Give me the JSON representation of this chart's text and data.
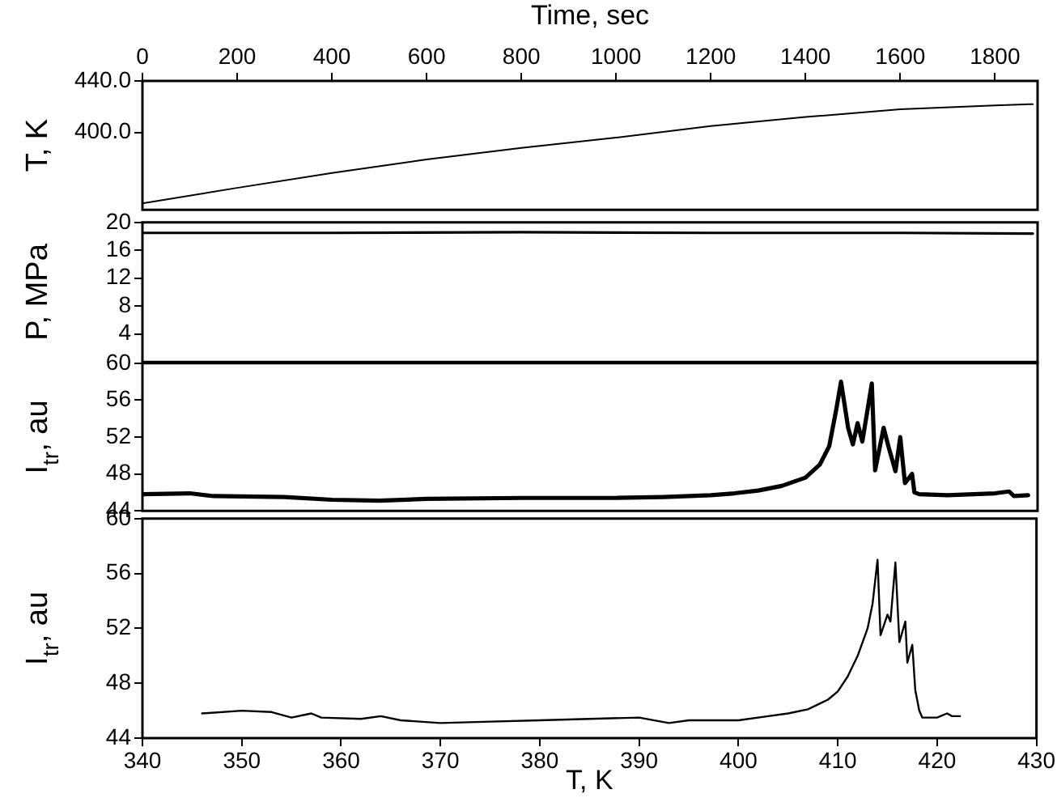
{
  "chart_data": [
    {
      "type": "line",
      "xlabel": "Time, sec",
      "ylabel": "T, K",
      "xlim": [
        0,
        1890
      ],
      "xticks": [
        0,
        200,
        400,
        600,
        800,
        1000,
        1200,
        1400,
        1600,
        1800
      ],
      "ylim": [
        340,
        440
      ],
      "yticks": [
        {
          "value": 400,
          "label": "400.0"
        },
        {
          "value": 440,
          "label": "440.0"
        }
      ],
      "series": [
        {
          "color": "#000000",
          "x": [
            0,
            200,
            400,
            600,
            800,
            1000,
            1200,
            1400,
            1600,
            1800,
            1880
          ],
          "values": [
            345,
            357,
            368.5,
            379,
            388,
            396,
            405,
            412,
            418,
            421,
            422
          ]
        }
      ]
    },
    {
      "type": "line",
      "ylabel": "P, MPa",
      "xlim": [
        0,
        1890
      ],
      "xticks": [
        0,
        200,
        400,
        600,
        800,
        1000,
        1200,
        1400,
        1600,
        1800
      ],
      "ylim": [
        0,
        20
      ],
      "yticks": [
        4,
        8,
        12,
        16,
        20
      ],
      "tick_labels": "y",
      "series": [
        {
          "color": "#000000",
          "x": [
            0,
            400,
            800,
            1200,
            1600,
            1880
          ],
          "values": [
            18.5,
            18.5,
            18.6,
            18.5,
            18.5,
            18.4
          ]
        }
      ]
    },
    {
      "type": "line",
      "ylabel": "I$_{tr}$, au",
      "xlim": [
        0,
        1890
      ],
      "xticks": [
        0,
        200,
        400,
        600,
        800,
        1000,
        1200,
        1400,
        1600,
        1800
      ],
      "ylim": [
        44,
        60
      ],
      "yticks": [
        44,
        48,
        52,
        56,
        60
      ],
      "tick_labels": "y",
      "series": [
        {
          "color": "#000000",
          "x": [
            0,
            100,
            150,
            300,
            400,
            500,
            600,
            800,
            1000,
            1100,
            1200,
            1250,
            1300,
            1350,
            1400,
            1430,
            1450,
            1465,
            1475,
            1490,
            1500,
            1510,
            1520,
            1540,
            1547,
            1565,
            1575,
            1590,
            1600,
            1610,
            1625,
            1630,
            1640,
            1700,
            1800,
            1830,
            1840,
            1870
          ],
          "values": [
            45.8,
            45.9,
            45.6,
            45.5,
            45.2,
            45.1,
            45.3,
            45.4,
            45.4,
            45.5,
            45.7,
            45.9,
            46.2,
            46.7,
            47.6,
            49,
            51,
            55,
            58,
            53,
            51.2,
            53.5,
            51.5,
            57.8,
            48.4,
            53,
            51,
            48.3,
            52,
            47,
            48,
            46,
            45.8,
            45.7,
            45.9,
            46.1,
            45.6,
            45.7
          ]
        }
      ]
    },
    {
      "type": "line",
      "xlabel": "T, K",
      "ylabel": "I$_{tr}$, au",
      "xlim": [
        340,
        430
      ],
      "xticks": [
        340,
        350,
        360,
        370,
        380,
        390,
        400,
        410,
        420,
        430
      ],
      "ylim": [
        44,
        60
      ],
      "yticks": [
        44,
        48,
        52,
        56,
        60
      ],
      "series": [
        {
          "color": "#000000",
          "x": [
            346,
            350,
            353,
            355,
            357,
            358,
            362,
            364,
            366,
            370,
            375,
            380,
            385,
            390,
            393,
            395,
            400,
            403,
            405,
            407,
            409,
            410,
            411,
            412,
            413,
            413.5,
            414,
            414.3,
            415,
            415.3,
            415.8,
            416.2,
            416.8,
            417,
            417.5,
            417.8,
            418.2,
            418.5,
            420,
            421,
            421.5,
            422.3
          ],
          "values": [
            45.8,
            46,
            45.9,
            45.5,
            45.8,
            45.5,
            45.4,
            45.6,
            45.3,
            45.1,
            45.2,
            45.3,
            45.4,
            45.5,
            45.1,
            45.3,
            45.3,
            45.6,
            45.8,
            46.1,
            46.8,
            47.4,
            48.5,
            50,
            52,
            53.8,
            57,
            51.5,
            53,
            52.5,
            56.8,
            51,
            52.5,
            49.5,
            50.8,
            47.5,
            46,
            45.5,
            45.5,
            45.8,
            45.6,
            45.6
          ]
        }
      ]
    }
  ]
}
